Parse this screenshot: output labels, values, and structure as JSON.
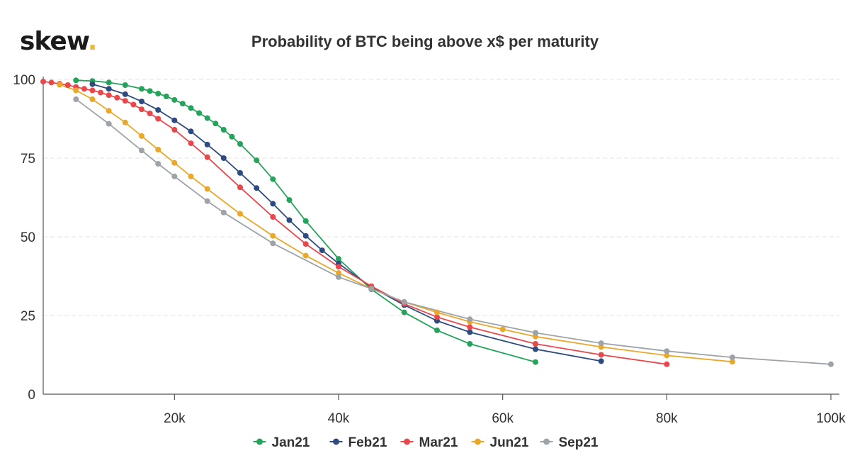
{
  "brand": {
    "text": "skew",
    "dot": "."
  },
  "chart_data": {
    "type": "line",
    "title": "Probability of BTC being above x$ per maturity",
    "xlabel": "",
    "ylabel": "",
    "xlim": [
      4000,
      100000
    ],
    "ylim": [
      0,
      100
    ],
    "x_ticks": [
      {
        "value": 20000,
        "label": "20k"
      },
      {
        "value": 40000,
        "label": "40k"
      },
      {
        "value": 60000,
        "label": "60k"
      },
      {
        "value": 80000,
        "label": "80k"
      },
      {
        "value": 100000,
        "label": "100k"
      }
    ],
    "y_ticks": [
      {
        "value": 0,
        "label": "0"
      },
      {
        "value": 25,
        "label": "25"
      },
      {
        "value": 50,
        "label": "50"
      },
      {
        "value": 75,
        "label": "75"
      },
      {
        "value": 100,
        "label": "100"
      }
    ],
    "grid": {
      "horizontal": true,
      "vertical": false
    },
    "legend_position": "bottom-center",
    "series": [
      {
        "name": "Jan21",
        "color": "#24a35a",
        "points": [
          [
            8000,
            99.7
          ],
          [
            10000,
            99.5
          ],
          [
            12000,
            99
          ],
          [
            14000,
            98.2
          ],
          [
            16000,
            97
          ],
          [
            17000,
            96.3
          ],
          [
            18000,
            95.5
          ],
          [
            19000,
            94.6
          ],
          [
            20000,
            93.5
          ],
          [
            21000,
            92.3
          ],
          [
            22000,
            90.9
          ],
          [
            23000,
            89.3
          ],
          [
            24000,
            87.7
          ],
          [
            25000,
            86
          ],
          [
            26000,
            84
          ],
          [
            27000,
            81.8
          ],
          [
            28000,
            79.5
          ],
          [
            30000,
            74.3
          ],
          [
            32000,
            68.3
          ],
          [
            34000,
            61.7
          ],
          [
            36000,
            55
          ],
          [
            40000,
            43
          ],
          [
            44000,
            33.3
          ],
          [
            48000,
            26
          ],
          [
            52000,
            20.3
          ],
          [
            56000,
            16
          ],
          [
            64000,
            10.2
          ]
        ]
      },
      {
        "name": "Feb21",
        "color": "#2d4b7f",
        "points": [
          [
            10000,
            98.5
          ],
          [
            12000,
            97
          ],
          [
            14000,
            95.3
          ],
          [
            16000,
            93
          ],
          [
            18000,
            90.3
          ],
          [
            20000,
            87
          ],
          [
            22000,
            83.5
          ],
          [
            24000,
            79.3
          ],
          [
            26000,
            75
          ],
          [
            28000,
            70.3
          ],
          [
            30000,
            65.5
          ],
          [
            32000,
            60.5
          ],
          [
            34000,
            55.3
          ],
          [
            36000,
            50.3
          ],
          [
            38000,
            45.7
          ],
          [
            40000,
            41.5
          ],
          [
            44000,
            34
          ],
          [
            48000,
            28.3
          ],
          [
            52000,
            23.3
          ],
          [
            56000,
            19.7
          ],
          [
            64000,
            14.3
          ],
          [
            72000,
            10.5
          ]
        ]
      },
      {
        "name": "Mar21",
        "color": "#e8474b",
        "points": [
          [
            4000,
            99.3
          ],
          [
            5000,
            99
          ],
          [
            6000,
            98.6
          ],
          [
            7000,
            98.2
          ],
          [
            8000,
            97.6
          ],
          [
            9000,
            97
          ],
          [
            10000,
            96.5
          ],
          [
            11000,
            95.8
          ],
          [
            12000,
            95
          ],
          [
            13000,
            94.2
          ],
          [
            14000,
            93.2
          ],
          [
            15000,
            92
          ],
          [
            16000,
            90.5
          ],
          [
            17000,
            89.2
          ],
          [
            18000,
            87.5
          ],
          [
            20000,
            84
          ],
          [
            22000,
            79.7
          ],
          [
            24000,
            75.3
          ],
          [
            28000,
            65.7
          ],
          [
            32000,
            56.3
          ],
          [
            36000,
            47.7
          ],
          [
            40000,
            40.5
          ],
          [
            44000,
            34.3
          ],
          [
            48000,
            28.7
          ],
          [
            52000,
            24.5
          ],
          [
            56000,
            21.3
          ],
          [
            64000,
            16
          ],
          [
            72000,
            12.5
          ],
          [
            80000,
            9.5
          ]
        ]
      },
      {
        "name": "Jun21",
        "color": "#e9a82a",
        "points": [
          [
            6000,
            98.3
          ],
          [
            8000,
            96.5
          ],
          [
            10000,
            93.7
          ],
          [
            12000,
            90
          ],
          [
            14000,
            86.3
          ],
          [
            16000,
            82
          ],
          [
            18000,
            77.7
          ],
          [
            20000,
            73.5
          ],
          [
            22000,
            69.2
          ],
          [
            24000,
            65.2
          ],
          [
            28000,
            57.3
          ],
          [
            32000,
            50.3
          ],
          [
            36000,
            44
          ],
          [
            40000,
            38.5
          ],
          [
            44000,
            33.5
          ],
          [
            48000,
            29.3
          ],
          [
            52000,
            26
          ],
          [
            56000,
            23
          ],
          [
            60000,
            20.6
          ],
          [
            64000,
            18.3
          ],
          [
            72000,
            15
          ],
          [
            80000,
            12.3
          ],
          [
            88000,
            10.3
          ]
        ]
      },
      {
        "name": "Sep21",
        "color": "#9ea3a8",
        "points": [
          [
            8000,
            93.7
          ],
          [
            12000,
            85.9
          ],
          [
            16000,
            77.4
          ],
          [
            18000,
            73.2
          ],
          [
            20000,
            69.2
          ],
          [
            24000,
            61.3
          ],
          [
            26000,
            57.7
          ],
          [
            32000,
            47.9
          ],
          [
            40000,
            37.2
          ],
          [
            44000,
            33.5
          ],
          [
            48000,
            29.3
          ],
          [
            56000,
            23.8
          ],
          [
            64000,
            19.5
          ],
          [
            72000,
            16.2
          ],
          [
            80000,
            13.7
          ],
          [
            88000,
            11.7
          ],
          [
            100000,
            9.5
          ]
        ]
      }
    ]
  }
}
